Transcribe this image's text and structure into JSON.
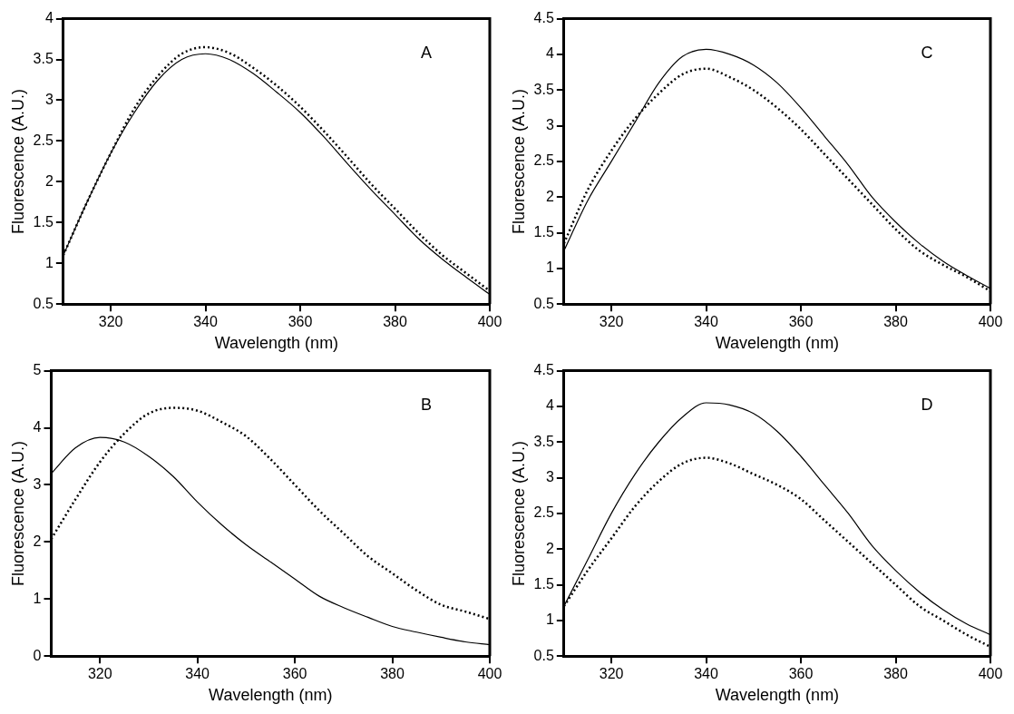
{
  "chart_data": [
    {
      "type": "line",
      "xlabel": "Wavelength (nm)",
      "ylabel": "Fluorescence (A.U.)",
      "annotations": [
        "A"
      ],
      "x": [
        310,
        315,
        320,
        325,
        330,
        335,
        340,
        345,
        350,
        355,
        360,
        365,
        370,
        375,
        380,
        385,
        390,
        395,
        400
      ],
      "xlim": [
        310,
        400
      ],
      "xticks": [
        320,
        340,
        360,
        380,
        400
      ],
      "ylim": [
        0.5,
        4
      ],
      "yticks": [
        0.5,
        1,
        1.5,
        2,
        2.5,
        3,
        3.5,
        4
      ],
      "grid": false,
      "legend": false,
      "series": [
        {
          "color": "#000000",
          "line_style": "solid",
          "values": [
            1.1,
            1.75,
            2.35,
            2.85,
            3.25,
            3.5,
            3.57,
            3.5,
            3.33,
            3.1,
            2.85,
            2.55,
            2.22,
            1.9,
            1.6,
            1.3,
            1.05,
            0.83,
            0.62
          ]
        },
        {
          "color": "#000000",
          "line_style": "dotted",
          "values": [
            1.1,
            1.75,
            2.35,
            2.9,
            3.3,
            3.57,
            3.65,
            3.58,
            3.4,
            3.18,
            2.92,
            2.62,
            2.3,
            1.97,
            1.67,
            1.37,
            1.1,
            0.88,
            0.66
          ]
        }
      ]
    },
    {
      "type": "line",
      "xlabel": "Wavelength (nm)",
      "ylabel": "Fluorescence (A.U.)",
      "annotations": [
        "C"
      ],
      "x": [
        310,
        315,
        320,
        325,
        330,
        335,
        340,
        345,
        350,
        355,
        360,
        365,
        370,
        375,
        380,
        385,
        390,
        395,
        400
      ],
      "xlim": [
        310,
        400
      ],
      "xticks": [
        320,
        340,
        360,
        380,
        400
      ],
      "ylim": [
        0.5,
        4.5
      ],
      "yticks": [
        0.5,
        1,
        1.5,
        2,
        2.5,
        3,
        3.5,
        4,
        4.5
      ],
      "grid": false,
      "legend": false,
      "series": [
        {
          "color": "#000000",
          "line_style": "solid",
          "values": [
            1.25,
            1.95,
            2.5,
            3.05,
            3.6,
            3.97,
            4.07,
            4.0,
            3.85,
            3.6,
            3.25,
            2.85,
            2.45,
            2.0,
            1.65,
            1.35,
            1.1,
            0.9,
            0.72
          ]
        },
        {
          "color": "#000000",
          "line_style": "dotted",
          "values": [
            1.35,
            2.1,
            2.65,
            3.1,
            3.45,
            3.72,
            3.8,
            3.68,
            3.5,
            3.25,
            2.95,
            2.6,
            2.25,
            1.9,
            1.55,
            1.25,
            1.05,
            0.88,
            0.68
          ]
        }
      ]
    },
    {
      "type": "line",
      "xlabel": "Wavelength (nm)",
      "ylabel": "Fluorescence (A.U.)",
      "annotations": [
        "B"
      ],
      "x": [
        310,
        315,
        320,
        325,
        330,
        335,
        340,
        345,
        350,
        355,
        360,
        365,
        370,
        375,
        380,
        385,
        390,
        395,
        400
      ],
      "xlim": [
        310,
        400
      ],
      "xticks": [
        320,
        340,
        360,
        380,
        400
      ],
      "ylim": [
        0,
        5
      ],
      "yticks": [
        0,
        1,
        2,
        3,
        4,
        5
      ],
      "grid": false,
      "legend": false,
      "series": [
        {
          "color": "#000000",
          "line_style": "solid",
          "values": [
            3.2,
            3.65,
            3.83,
            3.75,
            3.5,
            3.15,
            2.7,
            2.3,
            1.95,
            1.65,
            1.35,
            1.05,
            0.85,
            0.68,
            0.52,
            0.42,
            0.33,
            0.25,
            0.2
          ]
        },
        {
          "color": "#000000",
          "line_style": "dotted",
          "values": [
            2.05,
            2.75,
            3.4,
            3.9,
            4.25,
            4.35,
            4.3,
            4.1,
            3.85,
            3.45,
            3.0,
            2.55,
            2.15,
            1.75,
            1.45,
            1.15,
            0.9,
            0.78,
            0.65
          ]
        }
      ]
    },
    {
      "type": "line",
      "xlabel": "Wavelength (nm)",
      "ylabel": "Fluorescence (A.U.)",
      "annotations": [
        "D"
      ],
      "x": [
        310,
        315,
        320,
        325,
        330,
        335,
        340,
        345,
        350,
        355,
        360,
        365,
        370,
        375,
        380,
        385,
        390,
        395,
        400
      ],
      "xlim": [
        310,
        400
      ],
      "xticks": [
        320,
        340,
        360,
        380,
        400
      ],
      "ylim": [
        0.5,
        4.5
      ],
      "yticks": [
        0.5,
        1,
        1.5,
        2,
        2.5,
        3,
        3.5,
        4,
        4.5
      ],
      "grid": false,
      "legend": false,
      "series": [
        {
          "color": "#000000",
          "line_style": "solid",
          "values": [
            1.2,
            1.85,
            2.5,
            3.05,
            3.5,
            3.85,
            4.05,
            4.02,
            3.9,
            3.65,
            3.3,
            2.9,
            2.5,
            2.05,
            1.7,
            1.4,
            1.15,
            0.95,
            0.8
          ]
        },
        {
          "color": "#000000",
          "line_style": "dotted",
          "values": [
            1.2,
            1.7,
            2.15,
            2.6,
            2.95,
            3.2,
            3.28,
            3.2,
            3.05,
            2.9,
            2.7,
            2.4,
            2.1,
            1.8,
            1.5,
            1.2,
            1.0,
            0.8,
            0.63
          ]
        }
      ]
    }
  ]
}
